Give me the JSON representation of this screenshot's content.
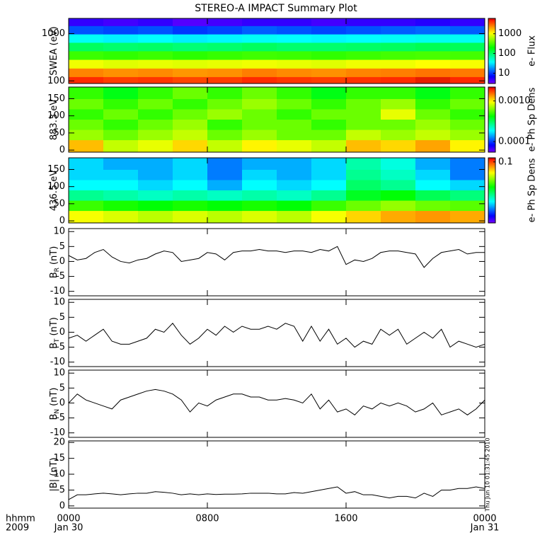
{
  "chart_data": [
    {
      "type": "heatmap",
      "title": "STEREO-A IMPACT Summary Plot",
      "ylabel": "SWEA (eV)",
      "zlabel": "e- Flux",
      "x": [
        1,
        3,
        5,
        7,
        9,
        11,
        13,
        15,
        17,
        19,
        21,
        23
      ],
      "xlim": [
        0,
        24
      ],
      "xticks": [
        0,
        8,
        16,
        24
      ],
      "y": [
        100,
        150,
        230,
        350,
        530,
        800,
        1200,
        1800
      ],
      "ylim": [
        88,
        2100
      ],
      "ylog": true,
      "yticks": [
        100,
        1000
      ],
      "zlim": [
        3,
        6000
      ],
      "zlog": true,
      "zticks": [
        10,
        100,
        1000
      ],
      "z": [
        [
          4500,
          4000,
          4200,
          3800,
          4000,
          4500,
          4200,
          4000,
          4300,
          4500,
          4800,
          4600
        ],
        [
          2500,
          2300,
          2400,
          2200,
          2300,
          2600,
          2400,
          2300,
          2500,
          2600,
          2800,
          2700
        ],
        [
          1000,
          900,
          950,
          900,
          950,
          1000,
          950,
          900,
          1000,
          1000,
          1100,
          1050
        ],
        [
          300,
          280,
          300,
          270,
          290,
          310,
          300,
          280,
          300,
          320,
          330,
          320
        ],
        [
          110,
          100,
          105,
          95,
          100,
          110,
          100,
          100,
          105,
          110,
          120,
          115
        ],
        [
          40,
          35,
          38,
          34,
          36,
          40,
          38,
          36,
          38,
          40,
          42,
          41
        ],
        [
          12,
          11,
          12,
          10,
          11,
          13,
          12,
          11,
          12,
          13,
          14,
          13
        ],
        [
          5,
          4.5,
          5,
          4,
          4.5,
          5,
          5,
          4.5,
          5,
          5,
          5.5,
          5
        ]
      ]
    },
    {
      "type": "heatmap",
      "ylabel": "883.3 eV",
      "zlabel": "e- Ph Sp Dens",
      "x": [
        1,
        3,
        5,
        7,
        9,
        11,
        13,
        15,
        17,
        19,
        21,
        23
      ],
      "xlim": [
        0,
        24
      ],
      "xticks": [
        0,
        8,
        16,
        24
      ],
      "y": [
        15,
        45,
        75,
        105,
        135,
        165
      ],
      "ylim": [
        -6,
        184
      ],
      "yticks": [
        0,
        50,
        100,
        150
      ],
      "zlim": [
        5.5e-05,
        0.0022
      ],
      "zlog": true,
      "zticks": [
        0.0001,
        {
          "value": 0.001,
          "label": "0.0010"
        }
      ],
      "z": [
        [
          0.0012,
          0.0008,
          0.0009,
          0.0011,
          0.0008,
          0.001,
          0.0009,
          0.0008,
          0.0012,
          0.0011,
          0.0013,
          0.001
        ],
        [
          0.0007,
          0.0006,
          0.0007,
          0.0008,
          0.0006,
          0.0007,
          0.0006,
          0.0006,
          0.0008,
          0.0007,
          0.0008,
          0.0007
        ],
        [
          0.0006,
          0.0005,
          0.0006,
          0.0007,
          0.0005,
          0.0006,
          0.0006,
          0.0005,
          0.0006,
          0.0006,
          0.0007,
          0.0006
        ],
        [
          0.0005,
          0.0006,
          0.0005,
          0.0006,
          0.0007,
          0.0006,
          0.0005,
          0.0006,
          0.0006,
          0.0009,
          0.0006,
          0.0005
        ],
        [
          0.0006,
          0.0005,
          0.0006,
          0.0005,
          0.0006,
          0.0007,
          0.0006,
          0.0005,
          0.0006,
          0.0007,
          0.0005,
          0.0006
        ],
        [
          0.0005,
          0.0004,
          0.0005,
          0.0006,
          0.0005,
          0.0006,
          0.0005,
          0.0004,
          0.0005,
          0.0005,
          0.0004,
          0.0005
        ]
      ]
    },
    {
      "type": "heatmap",
      "ylabel": "436.5 eV",
      "zlabel": "e- Ph Sp Dens",
      "x": [
        1,
        3,
        5,
        7,
        9,
        11,
        13,
        15,
        17,
        19,
        21,
        23
      ],
      "xlim": [
        0,
        24
      ],
      "xticks": [
        0,
        8,
        16,
        24
      ],
      "y": [
        15,
        45,
        75,
        105,
        135,
        165
      ],
      "ylim": [
        -6,
        184
      ],
      "yticks": [
        0,
        50,
        100,
        150
      ],
      "zlim": [
        0.002,
        0.13
      ],
      "zlog": true,
      "zticks": [
        0.1
      ],
      "z": [
        [
          0.05,
          0.045,
          0.04,
          0.045,
          0.04,
          0.045,
          0.04,
          0.05,
          0.06,
          0.07,
          0.075,
          0.07
        ],
        [
          0.025,
          0.022,
          0.02,
          0.022,
          0.02,
          0.022,
          0.02,
          0.025,
          0.03,
          0.035,
          0.03,
          0.028
        ],
        [
          0.012,
          0.011,
          0.01,
          0.011,
          0.01,
          0.011,
          0.01,
          0.012,
          0.018,
          0.02,
          0.015,
          0.013
        ],
        [
          0.008,
          0.008,
          0.007,
          0.008,
          0.006,
          0.008,
          0.007,
          0.008,
          0.014,
          0.012,
          0.008,
          0.007
        ],
        [
          0.007,
          0.007,
          0.006,
          0.007,
          0.005,
          0.007,
          0.006,
          0.007,
          0.012,
          0.01,
          0.007,
          0.005
        ],
        [
          0.007,
          0.006,
          0.006,
          0.007,
          0.005,
          0.006,
          0.006,
          0.007,
          0.011,
          0.009,
          0.006,
          0.005
        ]
      ]
    },
    {
      "type": "line",
      "ylabel": "B",
      "ylabel_sub": "R",
      "ylabel_unit": "(nT)",
      "x": [
        0,
        0.5,
        1,
        1.5,
        2,
        2.5,
        3,
        3.5,
        4,
        4.5,
        5,
        5.5,
        6,
        6.5,
        7,
        7.5,
        8,
        8.5,
        9,
        9.5,
        10,
        10.5,
        11,
        11.5,
        12,
        12.5,
        13,
        13.5,
        14,
        14.5,
        15,
        15.5,
        16,
        16.5,
        17,
        17.5,
        18,
        18.5,
        19,
        19.5,
        20,
        20.5,
        21,
        21.5,
        22,
        22.5,
        23,
        23.5,
        24
      ],
      "xlim": [
        0,
        24
      ],
      "xticks": [
        0,
        8,
        16,
        24
      ],
      "ylim": [
        -11.5,
        11
      ],
      "yticks": [
        -10,
        -5,
        0,
        5,
        10
      ],
      "color": "#000000",
      "values": [
        2,
        0.5,
        1,
        3,
        4,
        1.5,
        0,
        -0.5,
        0.5,
        1,
        2.5,
        3.5,
        3,
        0,
        0.5,
        1,
        3,
        2.5,
        0.5,
        3,
        3.5,
        3.5,
        4,
        3.5,
        3.5,
        3,
        3.5,
        3.5,
        3,
        4,
        3.5,
        5,
        -1,
        0.5,
        0,
        1,
        3,
        3.5,
        3.5,
        3,
        2.5,
        -2,
        1,
        3,
        3.5,
        4,
        2.5,
        3,
        3
      ]
    },
    {
      "type": "line",
      "ylabel": "B",
      "ylabel_sub": "T",
      "ylabel_unit": "(nT)",
      "x": [
        0,
        0.5,
        1,
        1.5,
        2,
        2.5,
        3,
        3.5,
        4,
        4.5,
        5,
        5.5,
        6,
        6.5,
        7,
        7.5,
        8,
        8.5,
        9,
        9.5,
        10,
        10.5,
        11,
        11.5,
        12,
        12.5,
        13,
        13.5,
        14,
        14.5,
        15,
        15.5,
        16,
        16.5,
        17,
        17.5,
        18,
        18.5,
        19,
        19.5,
        20,
        20.5,
        21,
        21.5,
        22,
        22.5,
        23,
        23.5,
        24
      ],
      "xlim": [
        0,
        24
      ],
      "xticks": [
        0,
        8,
        16,
        24
      ],
      "ylim": [
        -11.5,
        11
      ],
      "yticks": [
        -10,
        -5,
        0,
        5,
        10
      ],
      "color": "#000000",
      "values": [
        -2,
        -1,
        -3,
        -1,
        1,
        -3,
        -4,
        -4,
        -3,
        -2,
        1,
        0,
        3,
        -1,
        -4,
        -2,
        1,
        -1,
        2,
        0,
        2,
        1,
        1,
        2,
        1,
        3,
        2,
        -3,
        2,
        -3,
        1,
        -4,
        -2,
        -5,
        -3,
        -4,
        1,
        -1,
        1,
        -4,
        -2,
        0,
        -2,
        1,
        -5,
        -3,
        -4,
        -5,
        -4
      ]
    },
    {
      "type": "line",
      "ylabel": "B",
      "ylabel_sub": "N",
      "ylabel_unit": "(nT)",
      "x": [
        0,
        0.5,
        1,
        1.5,
        2,
        2.5,
        3,
        3.5,
        4,
        4.5,
        5,
        5.5,
        6,
        6.5,
        7,
        7.5,
        8,
        8.5,
        9,
        9.5,
        10,
        10.5,
        11,
        11.5,
        12,
        12.5,
        13,
        13.5,
        14,
        14.5,
        15,
        15.5,
        16,
        16.5,
        17,
        17.5,
        18,
        18.5,
        19,
        19.5,
        20,
        20.5,
        21,
        21.5,
        22,
        22.5,
        23,
        23.5,
        24
      ],
      "xlim": [
        0,
        24
      ],
      "xticks": [
        0,
        8,
        16,
        24
      ],
      "ylim": [
        -11.5,
        11
      ],
      "yticks": [
        -10,
        -5,
        0,
        5,
        10
      ],
      "color": "#000000",
      "values": [
        0,
        3,
        1,
        0,
        -1,
        -2,
        1,
        2,
        3,
        4,
        4.5,
        4,
        3,
        1,
        -3,
        0,
        -1,
        1,
        2,
        3,
        3,
        2,
        2,
        1,
        1,
        1.5,
        1,
        0,
        3,
        -2,
        1,
        -3,
        -2,
        -4,
        -1,
        -2,
        0,
        -1,
        0,
        -1,
        -3,
        -2,
        0,
        -4,
        -3,
        -2,
        -4,
        -2,
        1
      ]
    },
    {
      "type": "line",
      "ylabel": "|B|",
      "ylabel_unit": "(nT)",
      "x": [
        0,
        0.5,
        1,
        1.5,
        2,
        2.5,
        3,
        3.5,
        4,
        4.5,
        5,
        5.5,
        6,
        6.5,
        7,
        7.5,
        8,
        8.5,
        9,
        9.5,
        10,
        10.5,
        11,
        11.5,
        12,
        12.5,
        13,
        13.5,
        14,
        14.5,
        15,
        15.5,
        16,
        16.5,
        17,
        17.5,
        18,
        18.5,
        19,
        19.5,
        20,
        20.5,
        21,
        21.5,
        22,
        22.5,
        23,
        23.5,
        24
      ],
      "xlim": [
        0,
        24
      ],
      "xticks": [
        {
          "value": 0,
          "label": "0000"
        },
        {
          "value": 8,
          "label": "0800"
        },
        {
          "value": 16,
          "label": "1600"
        },
        {
          "value": 24,
          "label": "0000"
        }
      ],
      "x_sublabels": [
        {
          "value": 0,
          "label": "Jan 30"
        },
        {
          "value": 24,
          "label": "Jan 31"
        }
      ],
      "xlabel": "hhmm",
      "xlabel2": "2009",
      "annotation": "Thu Jun 10 01:31:45 2010",
      "ylim": [
        -0.7,
        20.5
      ],
      "yticks": [
        0,
        5,
        10,
        15,
        20
      ],
      "color": "#000000",
      "values": [
        2,
        3.5,
        3.5,
        3.8,
        4,
        3.8,
        3.5,
        3.8,
        4,
        4,
        4.5,
        4.3,
        4,
        3.5,
        3.8,
        3.5,
        3.8,
        3.6,
        3.7,
        3.7,
        3.8,
        4,
        4,
        4,
        3.8,
        3.8,
        4.2,
        4,
        4.5,
        5,
        5.5,
        6,
        4,
        4.5,
        3.5,
        3.5,
        3,
        2.5,
        3,
        3,
        2.5,
        4,
        3,
        5,
        5,
        5.5,
        5.5,
        6,
        5.5
      ]
    }
  ]
}
